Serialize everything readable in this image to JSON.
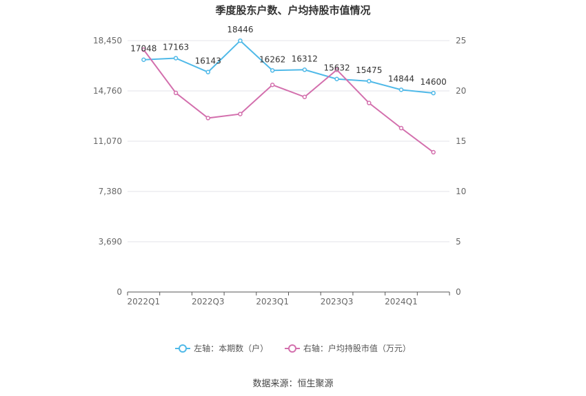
{
  "chart_data": {
    "type": "line",
    "title": "季度股东户数、户均持股市值情况",
    "categories": [
      "2022Q1",
      "2022Q2",
      "2022Q3",
      "2022Q4",
      "2023Q1",
      "2023Q2",
      "2023Q3",
      "2023Q4",
      "2024Q1",
      "2024Q2"
    ],
    "x_tick_labels": [
      "2022Q1",
      "2022Q3",
      "2023Q1",
      "2023Q3",
      "2024Q1"
    ],
    "left_axis": {
      "ticks": [
        "0",
        "3,690",
        "7,380",
        "11,070",
        "14,760",
        "18,450"
      ],
      "ylim": [
        0,
        18450
      ]
    },
    "right_axis": {
      "ticks": [
        "0",
        "5",
        "10",
        "15",
        "20",
        "25"
      ],
      "ylim": [
        0,
        25
      ]
    },
    "series": [
      {
        "name": "左轴：本期数（户）",
        "axis": "left",
        "color": "#4fb9e8",
        "values": [
          17048,
          17163,
          16143,
          18446,
          16262,
          16312,
          15632,
          15475,
          14844,
          14600
        ],
        "labels": [
          "17048",
          "17163",
          "16143",
          "18446",
          "16262",
          "16312",
          "15632",
          "15475",
          "14844",
          "14600"
        ]
      },
      {
        "name": "右轴：户均持股市值（万元）",
        "axis": "right",
        "color": "#d36fad",
        "values": [
          24.1,
          19.8,
          17.3,
          17.7,
          20.6,
          19.4,
          22.1,
          18.8,
          16.3,
          13.9
        ]
      }
    ],
    "grid": true,
    "legend_position": "bottom"
  },
  "footer": {
    "source": "数据来源：恒生聚源"
  }
}
